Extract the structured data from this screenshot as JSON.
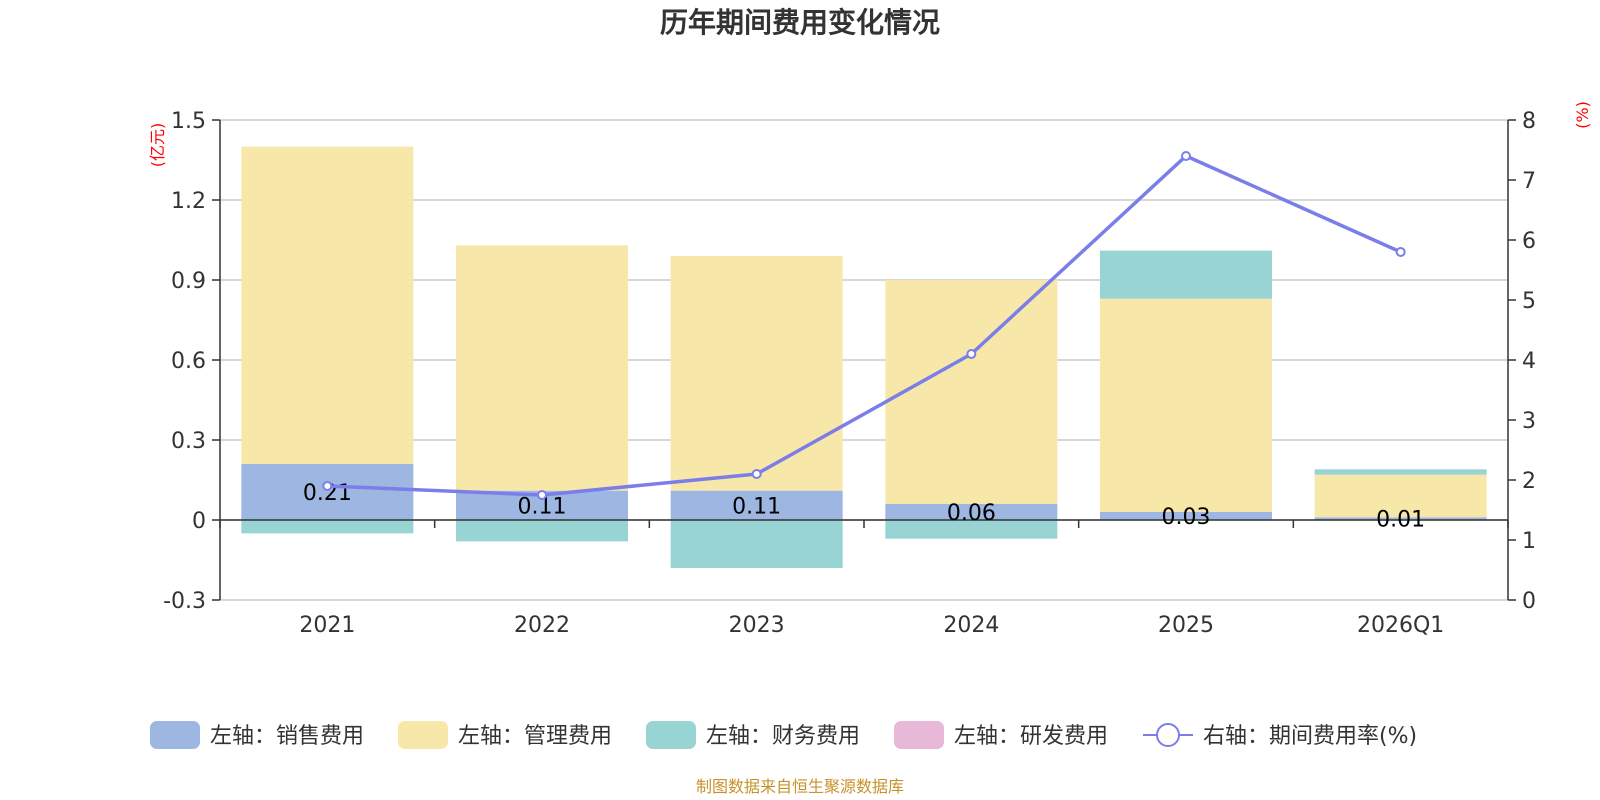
{
  "chart_data": {
    "type": "bar",
    "title": "历年期间费用变化情况",
    "left_axis_unit": "(亿元)",
    "right_axis_unit": "(%)",
    "categories": [
      "2021",
      "2022",
      "2023",
      "2024",
      "2025",
      "2026Q1"
    ],
    "ylim_left": [
      -0.3,
      1.5
    ],
    "yticks_left": [
      "1.5",
      "1.2",
      "0.9",
      "0.6",
      "0.3",
      "0",
      "-0.3"
    ],
    "ylim_right": [
      0,
      8
    ],
    "yticks_right": [
      "8",
      "7",
      "6",
      "5",
      "4",
      "3",
      "2",
      "1",
      "0"
    ],
    "series": [
      {
        "name": "左轴：销售费用",
        "axis": "left",
        "type": "bar",
        "color": "#9db6e2",
        "values": [
          0.21,
          0.11,
          0.11,
          0.06,
          0.03,
          0.01
        ],
        "labels": [
          "0.21",
          "0.11",
          "0.11",
          "0.06",
          "0.03",
          "0.01"
        ]
      },
      {
        "name": "左轴：管理费用",
        "axis": "left",
        "type": "bar",
        "color": "#f7e7a8",
        "values": [
          1.19,
          0.92,
          0.88,
          0.84,
          0.8,
          0.16
        ]
      },
      {
        "name": "左轴：财务费用",
        "axis": "left",
        "type": "bar",
        "color": "#98d4d4",
        "values": [
          -0.05,
          -0.08,
          -0.18,
          -0.07,
          0.18,
          0.02
        ]
      },
      {
        "name": "左轴：研发费用",
        "axis": "left",
        "type": "bar",
        "color": "#e8b8d8",
        "values": [
          0,
          0,
          0,
          0,
          0,
          0
        ]
      },
      {
        "name": "右轴：期间费用率(%)",
        "axis": "right",
        "type": "line",
        "color": "#7b7ee8",
        "values": [
          1.9,
          1.75,
          2.1,
          4.1,
          7.4,
          5.8
        ]
      }
    ],
    "legend_position": "bottom",
    "grid": true
  },
  "source": "制图数据来自恒生聚源数据库"
}
